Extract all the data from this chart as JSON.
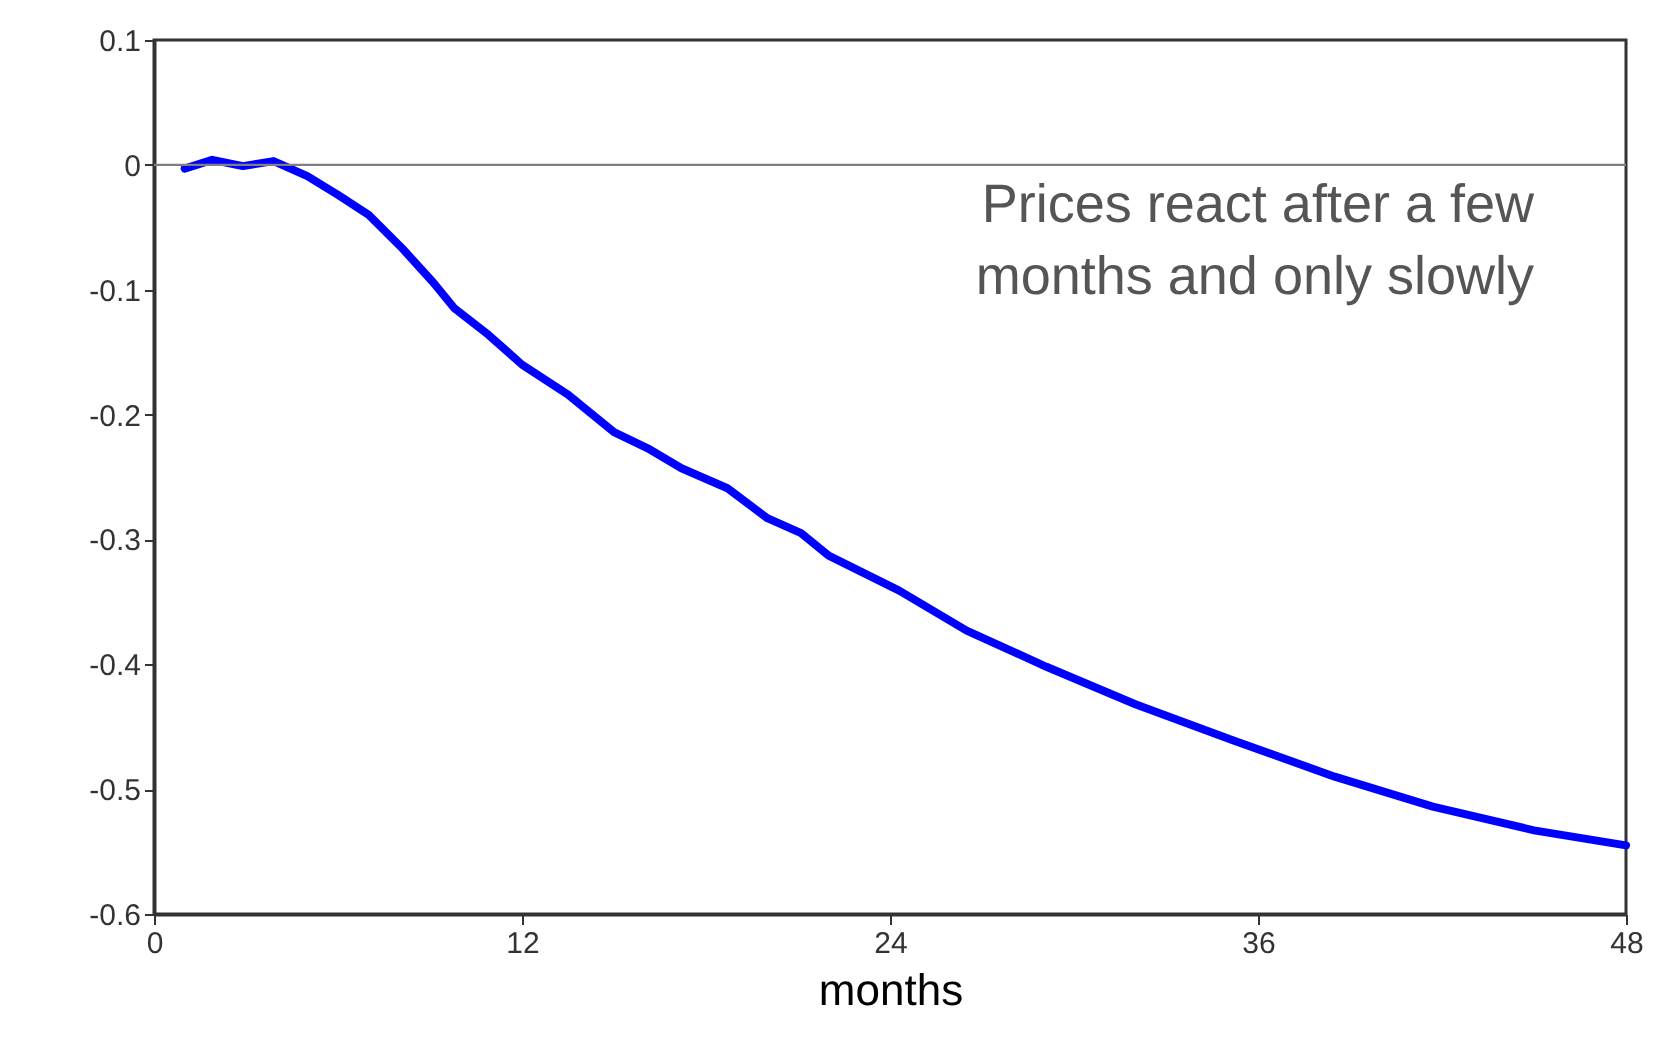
{
  "chart_data": {
    "type": "line",
    "xlabel": "months",
    "x": [
      1,
      1.9,
      2.9,
      3.9,
      5,
      6,
      7,
      8.1,
      9.1,
      9.8,
      10.9,
      12,
      13.5,
      15,
      16.1,
      17.2,
      18.7,
      20,
      21.1,
      22,
      24.3,
      26.5,
      29.1,
      32,
      35.2,
      38.5,
      41.7,
      45,
      48
    ],
    "series": [
      {
        "color": "#0000ff",
        "values": [
          -0.003,
          0.004,
          -0.001,
          0.003,
          -0.009,
          -0.024,
          -0.04,
          -0.067,
          -0.094,
          -0.115,
          -0.136,
          -0.16,
          -0.184,
          -0.214,
          -0.227,
          -0.243,
          -0.259,
          -0.283,
          -0.295,
          -0.313,
          -0.341,
          -0.373,
          -0.402,
          -0.432,
          -0.461,
          -0.49,
          -0.514,
          -0.533,
          -0.545
        ]
      }
    ],
    "xlim": [
      0,
      48
    ],
    "xticks": [
      0,
      12,
      24,
      36,
      48
    ],
    "ylim": [
      -0.6,
      0.1
    ],
    "yticks": [
      -0.6,
      -0.5,
      -0.4,
      -0.3,
      -0.2,
      -0.1,
      0,
      0.1
    ],
    "ref_lines": [
      {
        "axis": "y",
        "value": 0,
        "color": "#808080"
      }
    ],
    "annotations": [
      "Prices react after a few\nmonths and only slowly"
    ],
    "grid": false,
    "marker": "none",
    "line_style": "solid"
  }
}
